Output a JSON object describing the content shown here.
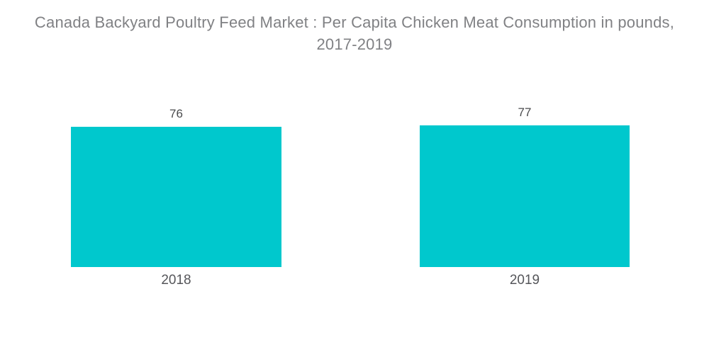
{
  "chart_data": {
    "type": "bar",
    "title": "Canada Backyard Poultry Feed Market : Per Capita Chicken Meat Consumption in pounds, 2017-2019",
    "title_lines": [
      "Canada Backyard Poultry Feed Market : Per Capita Chicken Meat Consumption in pounds,",
      "2017-2019"
    ],
    "categories": [
      "2018",
      "2019"
    ],
    "values": [
      76,
      77
    ],
    "value_labels": [
      "76",
      "77"
    ],
    "xlabel": "",
    "ylabel": "",
    "ylim": [
      0,
      80
    ],
    "grid": false,
    "legend": false,
    "axes_visible": false,
    "bar_color": "#00c8cd"
  },
  "colors": {
    "background": "#ffffff",
    "bar": "#00c8cd",
    "title_text": "#808184",
    "value_label_text": "#4a4b4d",
    "category_label_text": "#55565a"
  }
}
